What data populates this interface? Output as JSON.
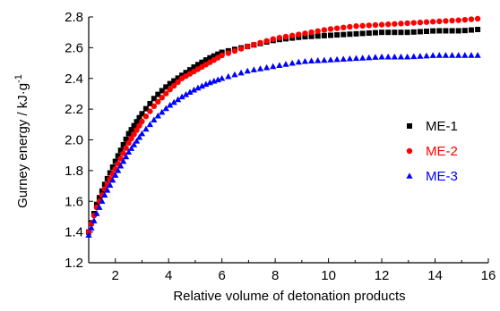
{
  "chart_data": {
    "type": "scatter",
    "xlabel": "Relative volume of detonation products",
    "ylabel": {
      "text": "Gurney energy / kJ·g",
      "superscript": "-1"
    },
    "xlim": [
      1,
      16
    ],
    "ylim": [
      1.2,
      2.8
    ],
    "xticks": [
      2,
      4,
      6,
      8,
      10,
      12,
      14,
      16
    ],
    "yticks": [
      1.2,
      1.4,
      1.6,
      1.8,
      2.0,
      2.2,
      2.4,
      2.6,
      2.8
    ],
    "grid": false,
    "legend_position": "right",
    "series": [
      {
        "name": "ME-1",
        "color": "#000000",
        "marker": "square",
        "points": [
          [
            1.0,
            1.4
          ],
          [
            1.3,
            1.58
          ],
          [
            1.6,
            1.71
          ],
          [
            2.0,
            1.86
          ],
          [
            2.5,
            2.04
          ],
          [
            3.0,
            2.17
          ],
          [
            3.5,
            2.28
          ],
          [
            4.0,
            2.36
          ],
          [
            4.5,
            2.42
          ],
          [
            5.0,
            2.48
          ],
          [
            5.5,
            2.53
          ],
          [
            6.0,
            2.57
          ],
          [
            7.0,
            2.61
          ],
          [
            8.0,
            2.65
          ],
          [
            9.0,
            2.67
          ],
          [
            10.0,
            2.68
          ],
          [
            11.0,
            2.69
          ],
          [
            12.0,
            2.7
          ],
          [
            13.0,
            2.7
          ],
          [
            14.0,
            2.71
          ],
          [
            15.0,
            2.71
          ],
          [
            15.7,
            2.72
          ]
        ]
      },
      {
        "name": "ME-2",
        "color": "#ff0000",
        "marker": "circle",
        "points": [
          [
            1.0,
            1.4
          ],
          [
            1.3,
            1.56
          ],
          [
            1.6,
            1.68
          ],
          [
            2.0,
            1.81
          ],
          [
            2.5,
            1.98
          ],
          [
            3.0,
            2.12
          ],
          [
            3.5,
            2.23
          ],
          [
            4.0,
            2.32
          ],
          [
            4.5,
            2.4
          ],
          [
            5.0,
            2.45
          ],
          [
            5.5,
            2.5
          ],
          [
            6.0,
            2.55
          ],
          [
            7.0,
            2.61
          ],
          [
            8.0,
            2.66
          ],
          [
            9.0,
            2.69
          ],
          [
            10.0,
            2.72
          ],
          [
            11.0,
            2.74
          ],
          [
            12.0,
            2.75
          ],
          [
            13.0,
            2.76
          ],
          [
            14.0,
            2.77
          ],
          [
            15.0,
            2.78
          ],
          [
            15.7,
            2.79
          ]
        ]
      },
      {
        "name": "ME-3",
        "color": "#0000ff",
        "marker": "triangle",
        "points": [
          [
            1.0,
            1.38
          ],
          [
            1.3,
            1.52
          ],
          [
            1.6,
            1.64
          ],
          [
            2.0,
            1.77
          ],
          [
            2.5,
            1.92
          ],
          [
            3.0,
            2.04
          ],
          [
            3.5,
            2.14
          ],
          [
            4.0,
            2.22
          ],
          [
            4.5,
            2.28
          ],
          [
            5.0,
            2.33
          ],
          [
            5.5,
            2.37
          ],
          [
            6.0,
            2.4
          ],
          [
            7.0,
            2.45
          ],
          [
            8.0,
            2.48
          ],
          [
            9.0,
            2.51
          ],
          [
            10.0,
            2.52
          ],
          [
            11.0,
            2.53
          ],
          [
            12.0,
            2.54
          ],
          [
            13.0,
            2.54
          ],
          [
            14.0,
            2.55
          ],
          [
            15.0,
            2.55
          ],
          [
            15.7,
            2.55
          ]
        ]
      }
    ]
  }
}
